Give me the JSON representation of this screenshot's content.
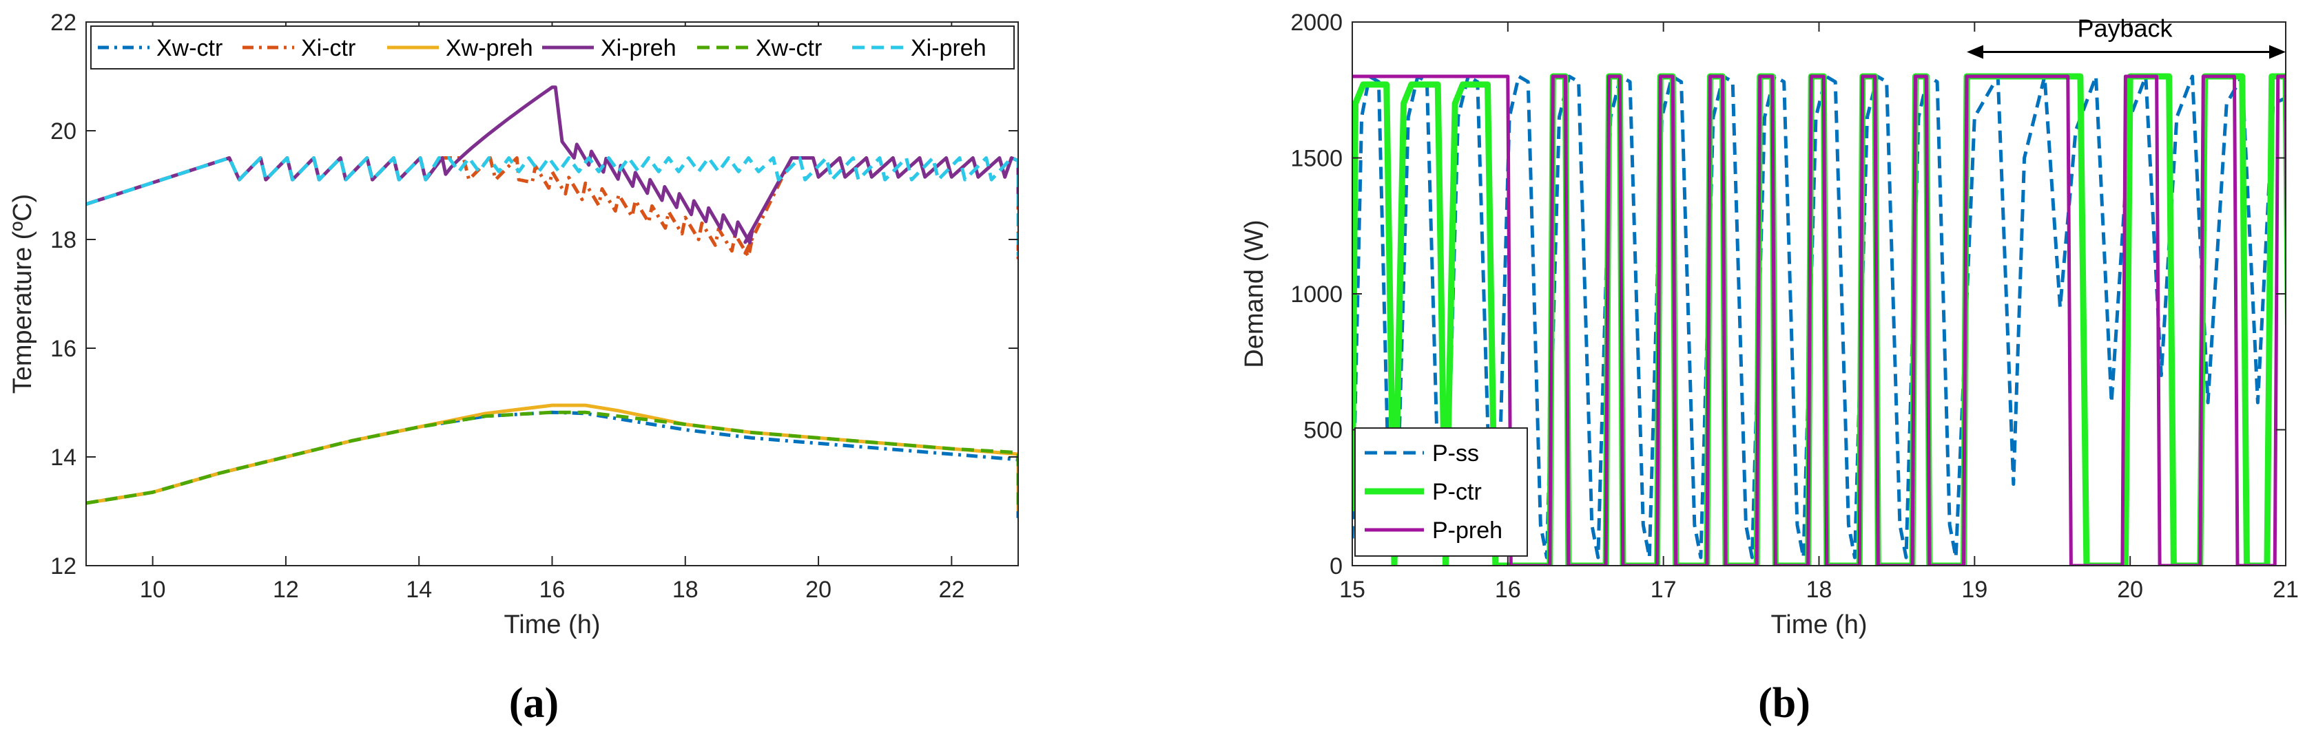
{
  "chart_data": [
    {
      "type": "line",
      "panel_label": "(a)",
      "xlabel": "Time (h)",
      "ylabel": "Temperature (ºC)",
      "xlim": [
        9,
        23
      ],
      "ylim": [
        12,
        22
      ],
      "xticks": [
        10,
        12,
        14,
        16,
        18,
        20,
        22
      ],
      "yticks": [
        12,
        14,
        16,
        18,
        20,
        22
      ],
      "legend_position": "top",
      "series": [
        {
          "name": "Xw-ctr",
          "color": "#0072BD",
          "dash": "dashdot",
          "x": [
            9,
            10,
            11,
            12,
            13,
            14,
            15,
            16,
            16.5,
            17,
            18,
            19,
            20,
            21,
            22,
            23,
            23
          ],
          "y": [
            13.15,
            13.35,
            13.7,
            14.0,
            14.3,
            14.55,
            14.75,
            14.82,
            14.8,
            14.7,
            14.5,
            14.35,
            14.25,
            14.15,
            14.05,
            13.95,
            12.8
          ]
        },
        {
          "name": "Xi-ctr",
          "color": "#D95319",
          "dash": "dashdot",
          "kind": "saw_ctr"
        },
        {
          "name": "Xw-preh",
          "color": "#EDB120",
          "dash": "solid",
          "x": [
            9,
            10,
            11,
            12,
            13,
            14,
            15,
            16,
            16.5,
            17,
            18,
            19,
            20,
            21,
            22,
            23,
            23
          ],
          "y": [
            13.15,
            13.35,
            13.7,
            14.0,
            14.3,
            14.55,
            14.8,
            14.95,
            14.95,
            14.85,
            14.6,
            14.45,
            14.35,
            14.25,
            14.15,
            14.05,
            13.0
          ]
        },
        {
          "name": "Xi-preh",
          "color": "#7E2F8E",
          "dash": "solid",
          "kind": "saw_preh"
        },
        {
          "name": "Xw-ctr",
          "color": "#4DA700",
          "dash": "dashed",
          "x": [
            9,
            10,
            11,
            12,
            13,
            14,
            15,
            16,
            16.5,
            17,
            18,
            19,
            20,
            21,
            22,
            23,
            23
          ],
          "y": [
            13.15,
            13.35,
            13.7,
            14.0,
            14.3,
            14.55,
            14.75,
            14.82,
            14.82,
            14.75,
            14.6,
            14.45,
            14.35,
            14.25,
            14.15,
            14.08,
            13.0
          ]
        },
        {
          "name": "Xi-preh",
          "color": "#2CC8E8",
          "dash": "dashed",
          "kind": "saw_ss"
        }
      ]
    },
    {
      "type": "line",
      "panel_label": "(b)",
      "xlabel": "Time (h)",
      "ylabel": "Demand (W)",
      "xlim": [
        15,
        21
      ],
      "ylim": [
        0,
        2000
      ],
      "xticks": [
        15,
        16,
        17,
        18,
        19,
        20,
        21
      ],
      "yticks": [
        0,
        500,
        1000,
        1500,
        2000
      ],
      "legend_position": "bottom-left",
      "annotation": {
        "text": "Payback",
        "x_from": 18.95,
        "x_to": 21.0,
        "y": 1890
      },
      "series": [
        {
          "name": "P-ss",
          "color": "#0072BD",
          "dash": "dashed",
          "kind": "pulses_ss"
        },
        {
          "name": "P-ctr",
          "color": "#22EE22",
          "dash": "solid",
          "kind": "pulses_ctr"
        },
        {
          "name": "P-preh",
          "color": "#A2149E",
          "dash": "solid",
          "kind": "pulses_preh"
        }
      ]
    }
  ]
}
